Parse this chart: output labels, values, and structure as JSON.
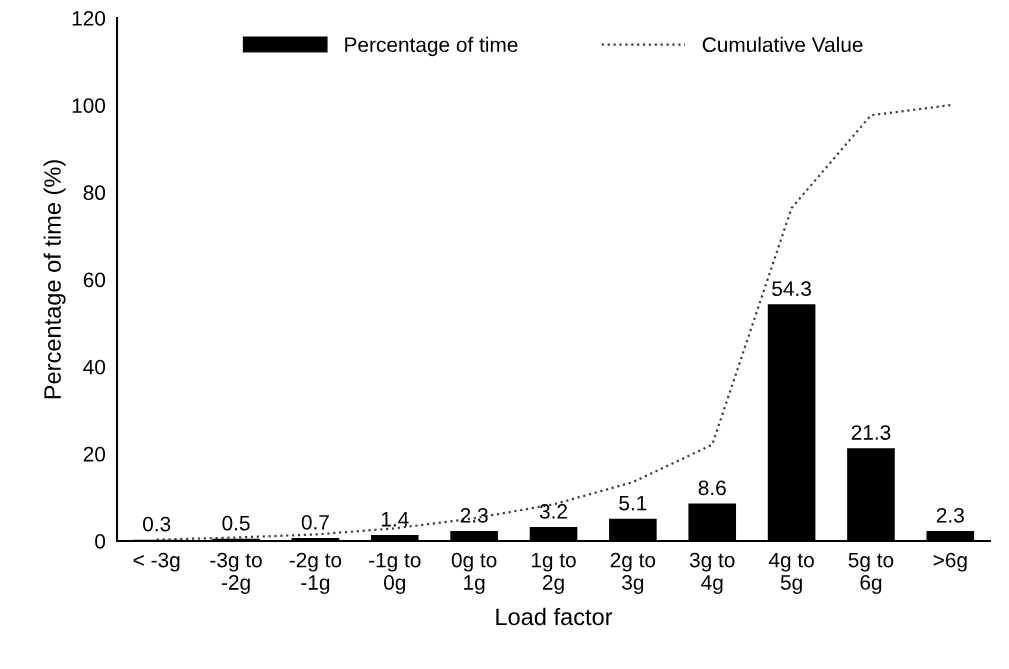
{
  "chart_data": {
    "type": "bar",
    "xlabel": "Load factor",
    "ylabel": "Percentage of time (%)",
    "categories": [
      "< -3g",
      "-3g to\n-2g",
      "-2g to\n-1g",
      "-1g to\n0g",
      "0g to\n1g",
      "1g to\n2g",
      "2g to\n3g",
      "3g to\n4g",
      "4g to\n5g",
      "5g to\n6g",
      ">6g"
    ],
    "series": [
      {
        "name": "Percentage of time",
        "color": "#000000",
        "values": [
          0.3,
          0.5,
          0.7,
          1.4,
          2.3,
          3.2,
          5.1,
          8.6,
          54.3,
          21.3,
          2.3
        ],
        "value_labels": [
          "0.3",
          "0.5",
          "0.7",
          "1.4",
          "2.3",
          "3.2",
          "5.1",
          "8.6",
          "54.3",
          "21.3",
          "2.3"
        ]
      },
      {
        "name": "Cumulative Value",
        "type": "line",
        "color": "#404040",
        "line_style": "dotted",
        "marker": "none",
        "values": [
          0.3,
          0.8,
          1.5,
          2.9,
          5.2,
          8.4,
          13.5,
          22.1,
          76.4,
          97.7,
          100.0
        ]
      }
    ],
    "ylim": [
      0,
      120
    ],
    "yticks": [
      0,
      20,
      40,
      60,
      80,
      100,
      120
    ],
    "grid": false,
    "legend": "top"
  }
}
